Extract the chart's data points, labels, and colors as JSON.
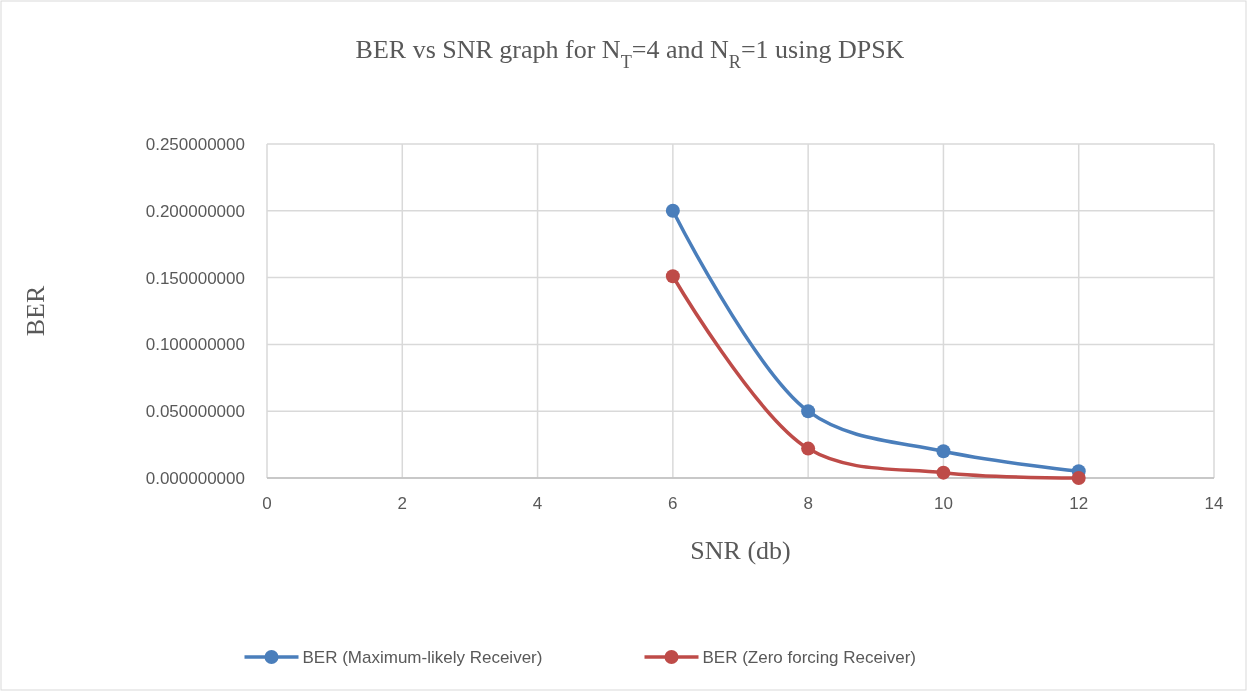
{
  "chart_data": {
    "type": "line",
    "title": "BER vs SNR graph for N$_{T}$=4 and N$_{R}$=1 using DPSK",
    "xlabel": "SNR (db)",
    "ylabel": "BER",
    "x": [
      6,
      8,
      10,
      12
    ],
    "series": [
      {
        "name": "BER (Maximum-likely Receiver)",
        "color": "#4a7ebb",
        "values": [
          0.2,
          0.05,
          0.02,
          0.005
        ]
      },
      {
        "name": "BER (Zero forcing Receiver)",
        "color": "#be4b48",
        "values": [
          0.151,
          0.022,
          0.004,
          0
        ]
      }
    ],
    "xlim": [
      0,
      14
    ],
    "xticks": [
      0,
      2,
      4,
      6,
      8,
      10,
      12,
      14
    ],
    "ylim": [
      0,
      0.25
    ],
    "yticks": [
      {
        "value": 0,
        "label": "0.000000000"
      },
      {
        "value": 0.05,
        "label": "0.050000000"
      },
      {
        "value": 0.1,
        "label": "0.100000000"
      },
      {
        "value": 0.15,
        "label": "0.150000000"
      },
      {
        "value": 0.2,
        "label": "0.200000000"
      },
      {
        "value": 0.25,
        "label": "0.250000000"
      }
    ],
    "grid": true,
    "legend": "bottom",
    "marker": "circle",
    "line_style": "solid"
  }
}
